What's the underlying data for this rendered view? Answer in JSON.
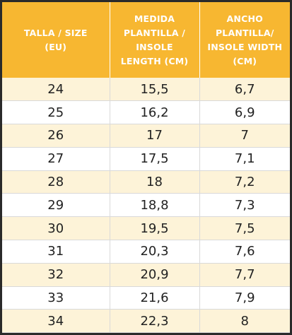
{
  "table": {
    "headers": [
      {
        "lines": [
          "TALLA / SIZE",
          "(EU)"
        ]
      },
      {
        "lines": [
          "MEDIDA",
          "PLANTILLA /",
          "INSOLE",
          "LENGTH (CM)"
        ]
      },
      {
        "lines": [
          "ANCHO",
          "PLANTILLA/",
          "INSOLE WIDTH",
          "(CM)"
        ]
      }
    ],
    "rows": [
      [
        "24",
        "15,5",
        "6,7"
      ],
      [
        "25",
        "16,2",
        "6,9"
      ],
      [
        "26",
        "17",
        "7"
      ],
      [
        "27",
        "17,5",
        "7,1"
      ],
      [
        "28",
        "18",
        "7,2"
      ],
      [
        "29",
        "18,8",
        "7,3"
      ],
      [
        "30",
        "19,5",
        "7,5"
      ],
      [
        "31",
        "20,3",
        "7,6"
      ],
      [
        "32",
        "20,9",
        "7,7"
      ],
      [
        "33",
        "21,6",
        "7,9"
      ],
      [
        "34",
        "22,3",
        "8"
      ]
    ]
  },
  "colors": {
    "header_bg": "#f7b731",
    "header_text": "#ffffff",
    "row_odd_bg": "#fdf3d8",
    "row_even_bg": "#ffffff",
    "cell_text": "#222222",
    "frame": "#2a2a2a"
  }
}
